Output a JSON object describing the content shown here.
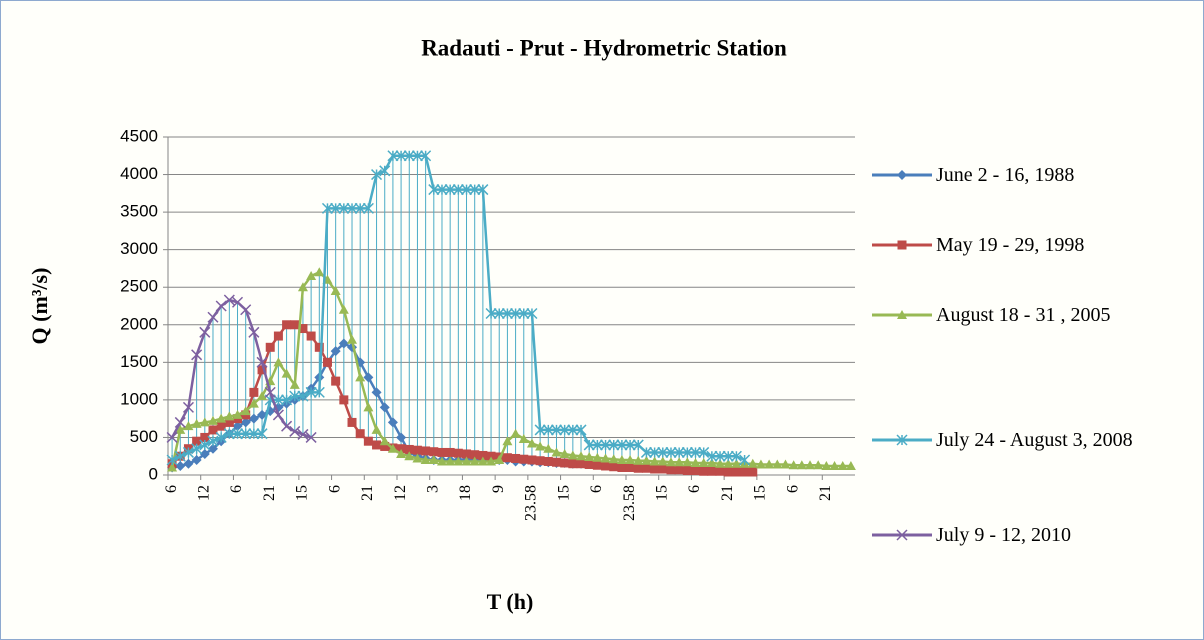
{
  "chart_data": {
    "type": "line",
    "title": "Radauti - Prut - Hydrometric Station",
    "x_label": "T (h)",
    "y_label": "Q (m³/s)",
    "categories": [
      "6",
      null,
      null,
      null,
      "12",
      null,
      null,
      null,
      "6",
      null,
      null,
      null,
      "21",
      null,
      null,
      null,
      "15",
      null,
      null,
      null,
      "6",
      null,
      null,
      null,
      "21",
      null,
      null,
      null,
      "12",
      null,
      null,
      null,
      "3",
      null,
      null,
      null,
      "18",
      null,
      null,
      null,
      "9",
      null,
      null,
      null,
      "23.58",
      null,
      null,
      null,
      "15",
      null,
      null,
      null,
      "6",
      null,
      null,
      null,
      "23.58",
      null,
      null,
      null,
      "15",
      null,
      null,
      null,
      "6",
      null,
      null,
      null,
      "21",
      null,
      null,
      null,
      "15",
      null,
      null,
      null,
      "6",
      null,
      null,
      null,
      "21",
      null,
      null,
      null
    ],
    "ylim": [
      0,
      4500
    ],
    "yticks": [
      0,
      500,
      1000,
      1500,
      2000,
      2500,
      3000,
      3500,
      4000,
      4500
    ],
    "grid": true,
    "legend": "right",
    "high_low_lines": true,
    "high_low_color": "#4bacc6",
    "series": [
      {
        "name": "June 2 - 16, 1988",
        "color": "#4a7ebb",
        "marker": "diamond",
        "values": [
          100,
          120,
          150,
          200,
          280,
          350,
          450,
          550,
          650,
          700,
          750,
          800,
          850,
          900,
          950,
          1000,
          1050,
          1150,
          1300,
          1500,
          1650,
          1750,
          1700,
          1500,
          1300,
          1100,
          900,
          700,
          500,
          300,
          250,
          220,
          200,
          200,
          200,
          200,
          200,
          200,
          200,
          200,
          200,
          200,
          180,
          180,
          180,
          170,
          170,
          160,
          160,
          150,
          150,
          150,
          140,
          140,
          130,
          130,
          120,
          120,
          110,
          110,
          100,
          100,
          100,
          90,
          90,
          90,
          80,
          80,
          80,
          80,
          null,
          null,
          null,
          null,
          null,
          null,
          null,
          null,
          null,
          null,
          null,
          null,
          null,
          null
        ]
      },
      {
        "name": "May 19 - 29, 1998",
        "color": "#be4b48",
        "marker": "square",
        "values": [
          150,
          250,
          350,
          450,
          500,
          600,
          650,
          700,
          750,
          800,
          1100,
          1400,
          1700,
          1850,
          2000,
          2000,
          1950,
          1850,
          1700,
          1500,
          1250,
          1000,
          700,
          550,
          450,
          400,
          380,
          360,
          350,
          340,
          330,
          320,
          310,
          300,
          300,
          290,
          280,
          270,
          260,
          250,
          240,
          230,
          220,
          210,
          200,
          190,
          180,
          170,
          160,
          150,
          150,
          140,
          130,
          120,
          110,
          100,
          100,
          90,
          90,
          80,
          80,
          70,
          70,
          60,
          60,
          50,
          50,
          50,
          40,
          40,
          40,
          40,
          null,
          null,
          null,
          null,
          null,
          null,
          null,
          null,
          null,
          null,
          null,
          null
        ]
      },
      {
        "name": "August 18 - 31 , 2005",
        "color": "#98b954",
        "marker": "triangle",
        "values": [
          100,
          600,
          650,
          680,
          700,
          720,
          750,
          780,
          800,
          850,
          950,
          1050,
          1250,
          1500,
          1350,
          1200,
          2500,
          2650,
          2700,
          2600,
          2450,
          2200,
          1800,
          1300,
          900,
          600,
          450,
          350,
          280,
          250,
          220,
          200,
          200,
          180,
          180,
          180,
          180,
          180,
          180,
          180,
          200,
          450,
          550,
          480,
          420,
          380,
          350,
          300,
          280,
          260,
          250,
          240,
          230,
          220,
          210,
          200,
          200,
          190,
          190,
          180,
          180,
          170,
          170,
          170,
          160,
          160,
          160,
          150,
          150,
          150,
          150,
          150,
          140,
          140,
          140,
          140,
          130,
          130,
          130,
          130,
          120,
          120,
          120,
          120
        ]
      },
      {
        "name": "July 24 - August 3, 2008",
        "color": "#4bacc6",
        "marker": "asterisk",
        "values": [
          200,
          250,
          300,
          350,
          400,
          450,
          500,
          550,
          550,
          550,
          550,
          550,
          1000,
          1000,
          1000,
          1050,
          1050,
          1100,
          1100,
          3550,
          3550,
          3550,
          3550,
          3550,
          3550,
          4000,
          4050,
          4250,
          4250,
          4250,
          4250,
          4250,
          3800,
          3800,
          3800,
          3800,
          3800,
          3800,
          3800,
          2150,
          2150,
          2150,
          2150,
          2150,
          2150,
          600,
          600,
          600,
          600,
          600,
          600,
          400,
          400,
          400,
          400,
          400,
          400,
          400,
          300,
          300,
          300,
          300,
          300,
          300,
          300,
          300,
          250,
          250,
          250,
          250,
          200,
          null,
          null,
          null,
          null,
          null,
          null,
          null,
          null,
          null,
          null,
          null,
          null,
          null
        ]
      },
      {
        "name": "July 9 - 12, 2010",
        "color": "#7d60a0",
        "marker": "x",
        "values": [
          500,
          700,
          900,
          1600,
          1900,
          2100,
          2250,
          2330,
          2300,
          2200,
          1900,
          1500,
          1100,
          800,
          650,
          580,
          540,
          500,
          null,
          null,
          null,
          null,
          null,
          null,
          null,
          null,
          null,
          null,
          null,
          null,
          null,
          null,
          null,
          null,
          null,
          null,
          null,
          null,
          null,
          null,
          null,
          null,
          null,
          null,
          null,
          null,
          null,
          null,
          null,
          null,
          null,
          null,
          null,
          null,
          null,
          null,
          null,
          null,
          null,
          null,
          null,
          null,
          null,
          null,
          null,
          null,
          null,
          null,
          null,
          null,
          null,
          null,
          null,
          null,
          null,
          null,
          null,
          null,
          null,
          null,
          null,
          null,
          null,
          null
        ]
      }
    ]
  }
}
